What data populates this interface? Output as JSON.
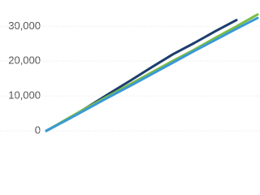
{
  "chart_data": {
    "type": "line",
    "categories": [
      null,
      null,
      null,
      null,
      null,
      null,
      null,
      null,
      null,
      null,
      null
    ],
    "series": [
      {
        "name": null,
        "color": "#1d3d6e",
        "values": [
          0,
          3300,
          7000,
          10800,
          14500,
          18300,
          22000,
          25200,
          28600,
          31800,
          null
        ]
      },
      {
        "name": null,
        "color": "#7cbd43",
        "values": [
          0,
          3500,
          6900,
          10200,
          13500,
          16800,
          20100,
          23300,
          26700,
          30000,
          33400
        ]
      },
      {
        "name": null,
        "color": "#3a9ad6",
        "values": [
          0,
          3200,
          6500,
          9800,
          13000,
          16300,
          19600,
          22900,
          26100,
          29300,
          32400
        ]
      }
    ],
    "ylim": [
      0,
      35000
    ],
    "yticks": [
      0,
      {
        "value": 10000,
        "label": "10,000"
      },
      {
        "value": 20000,
        "label": "20,000"
      },
      {
        "value": 30000,
        "label": "30,000"
      }
    ],
    "grid": true
  }
}
